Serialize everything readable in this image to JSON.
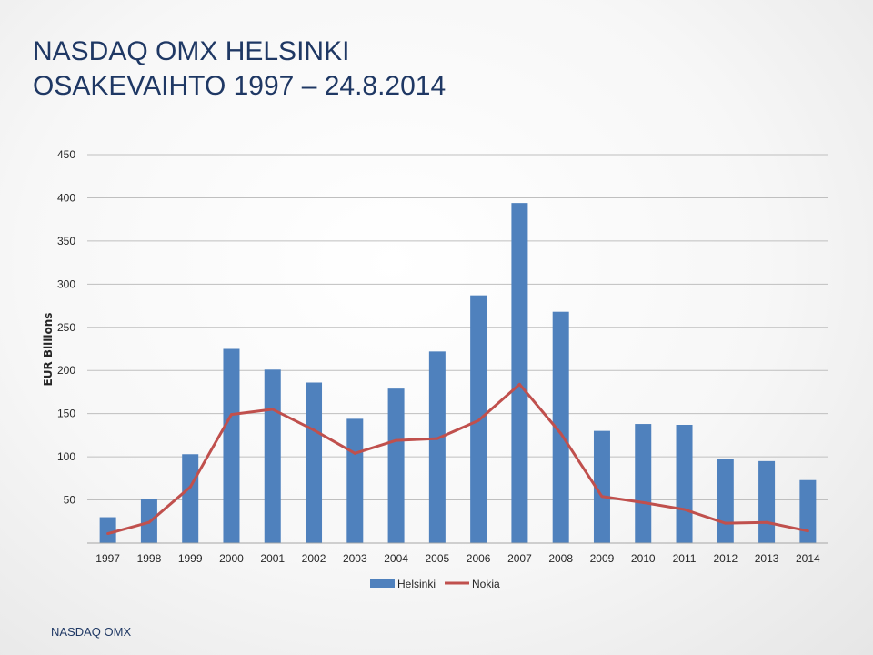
{
  "title": {
    "line1": "NASDAQ OMX HELSINKI",
    "line2": "OSAKEVAIHTO 1997 – 24.8.2014"
  },
  "footer": "NASDAQ OMX",
  "chart_data": {
    "type": "bar+line",
    "ylabel": "EUR Billions",
    "ylim": [
      0,
      450
    ],
    "yticks": [
      50,
      100,
      150,
      200,
      250,
      300,
      350,
      400,
      450
    ],
    "grid": true,
    "legend_position": "bottom",
    "categories": [
      "1997",
      "1998",
      "1999",
      "2000",
      "2001",
      "2002",
      "2003",
      "2004",
      "2005",
      "2006",
      "2007",
      "2008",
      "2009",
      "2010",
      "2011",
      "2012",
      "2013",
      "2014"
    ],
    "series": [
      {
        "name": "Helsinki",
        "type": "bar",
        "color": "#4f81bd",
        "values": [
          30,
          51,
          103,
          225,
          201,
          186,
          144,
          179,
          222,
          287,
          394,
          268,
          130,
          138,
          137,
          98,
          95,
          73
        ]
      },
      {
        "name": "Nokia",
        "type": "line",
        "color": "#c0504d",
        "values": [
          11,
          24,
          65,
          149,
          155,
          131,
          104,
          119,
          121,
          142,
          184,
          127,
          54,
          47,
          39,
          23,
          24,
          14
        ]
      }
    ]
  }
}
